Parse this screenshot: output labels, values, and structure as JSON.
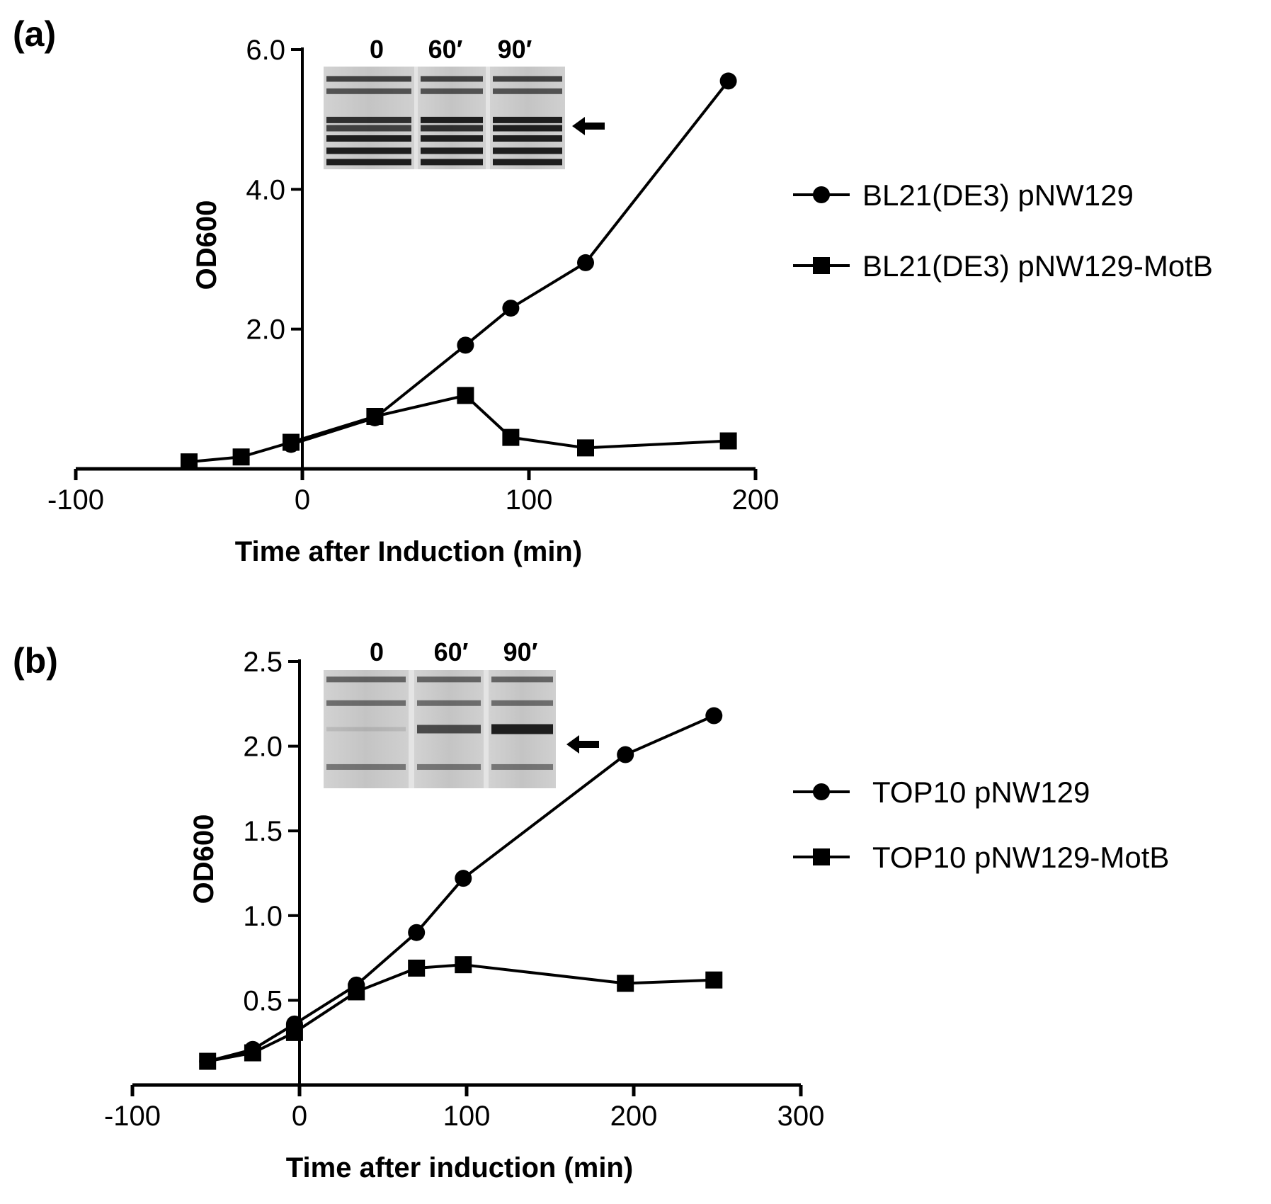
{
  "chart_data": [
    {
      "type": "line",
      "panel": "(a)",
      "xlabel": "Time after Induction (min)",
      "ylabel": "OD600",
      "xlim": [
        -100,
        200
      ],
      "ylim": [
        0,
        6.0
      ],
      "xticks": [
        -100,
        0,
        100,
        200
      ],
      "xtick_labels": [
        "-100",
        "0",
        "100",
        "200"
      ],
      "yticks": [
        2.0,
        4.0,
        6.0
      ],
      "ytick_labels": [
        "2.0",
        "4.0",
        "6.0"
      ],
      "series": [
        {
          "name": "BL21(DE3) pNW129",
          "marker": "circle",
          "x": [
            -5,
            32,
            72,
            92,
            125,
            188
          ],
          "y": [
            0.35,
            0.73,
            1.77,
            2.3,
            2.95,
            5.55
          ]
        },
        {
          "name": "BL21(DE3) pNW129-MotB",
          "marker": "square",
          "x": [
            -50,
            -27,
            -5,
            32,
            72,
            92,
            125,
            188
          ],
          "y": [
            0.1,
            0.17,
            0.38,
            0.75,
            1.05,
            0.45,
            0.3,
            0.4
          ]
        }
      ],
      "inset": {
        "lanes": [
          "0",
          "60′",
          "90′"
        ]
      },
      "legend_position": "right"
    },
    {
      "type": "line",
      "panel": "(b)",
      "xlabel": "Time after induction (min)",
      "ylabel": "OD600",
      "xlim": [
        -100,
        300
      ],
      "ylim": [
        0,
        2.5
      ],
      "xticks": [
        -100,
        0,
        100,
        200,
        300
      ],
      "xtick_labels": [
        "-100",
        "0",
        "100",
        "200",
        "300"
      ],
      "yticks": [
        0.5,
        1.0,
        1.5,
        2.0,
        2.5
      ],
      "ytick_labels": [
        "0.5",
        "1.0",
        "1.5",
        "2.0",
        "2.5"
      ],
      "series": [
        {
          "name": "TOP10 pNW129",
          "marker": "circle",
          "x": [
            -55,
            -28,
            -3,
            34,
            70,
            98,
            195,
            248
          ],
          "y": [
            0.14,
            0.21,
            0.36,
            0.59,
            0.9,
            1.22,
            1.95,
            2.18
          ]
        },
        {
          "name": "TOP10 pNW129-MotB",
          "marker": "square",
          "x": [
            -55,
            -28,
            -3,
            34,
            70,
            98,
            195,
            248
          ],
          "y": [
            0.14,
            0.19,
            0.31,
            0.55,
            0.69,
            0.71,
            0.6,
            0.62
          ]
        }
      ],
      "inset": {
        "lanes": [
          "0",
          "60′",
          "90′"
        ]
      },
      "legend_position": "right"
    }
  ]
}
